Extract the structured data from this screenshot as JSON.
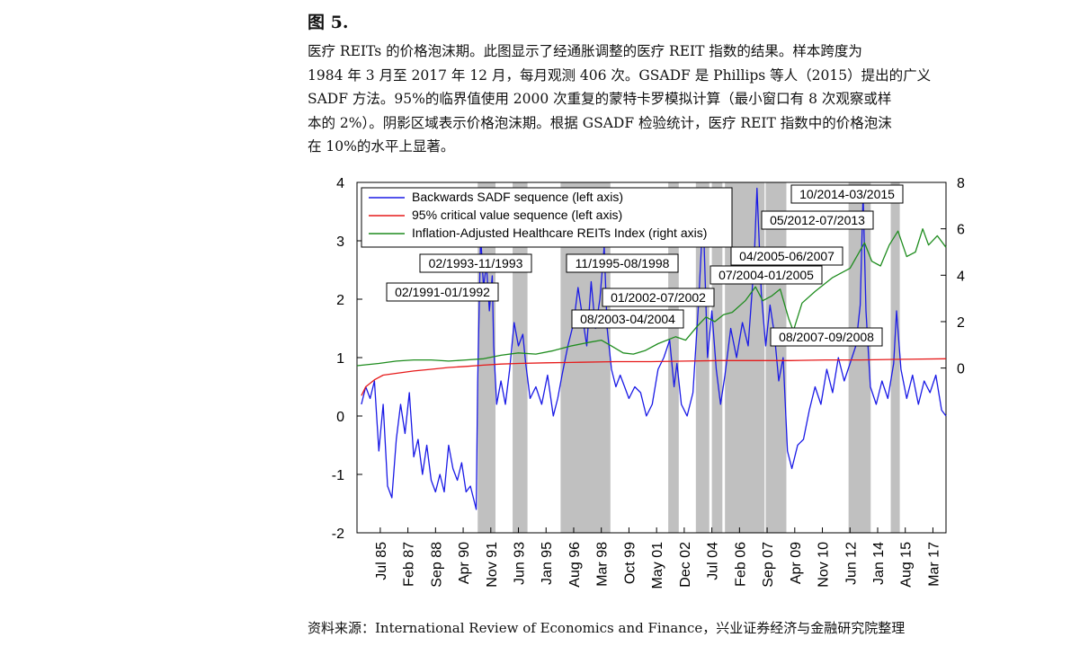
{
  "figure": {
    "title": "图 5.",
    "caption_lines": [
      "医疗 REITs 的价格泡沫期。此图显示了经通胀调整的医疗 REIT 指数的结果。样本跨度为",
      "1984 年 3 月至 2017 年 12 月，每月观测 406 次。GSADF 是 Phillips 等人（2015）提出的广义",
      "SADF 方法。95%的临界值使用 2000 次重复的蒙特卡罗模拟计算（最小窗口有 8 次观察或样",
      "本的 2%）。阴影区域表示价格泡沫期。根据 GSADF 检验统计，医疗 REIT 指数中的价格泡沫",
      "在 10%的水平上显著。"
    ],
    "source": "资料来源：International Review of Economics and Finance，兴业证券经济与金融研究院整理"
  },
  "colors": {
    "sadf": "#1a1ae6",
    "critical": "#e61a1a",
    "reit": "#1e8c1e",
    "shade": "#c0c0c0"
  },
  "chart_data": {
    "type": "line",
    "title": "",
    "xlabel": "",
    "ylabel_left": "",
    "ylabel_right": "",
    "x_range": [
      "1984-03",
      "2017-12"
    ],
    "left_axis": {
      "ylim": [
        -2,
        4
      ],
      "ticks": [
        "-2",
        "-1",
        "0",
        "1",
        "2",
        "3",
        "4"
      ]
    },
    "right_axis": {
      "ylim": [
        -7.1,
        8
      ],
      "ticks": [
        "0",
        "2",
        "4",
        "6",
        "8"
      ]
    },
    "x_tick_labels": [
      {
        "label": "Jul 85",
        "date": "1985-07"
      },
      {
        "label": "Feb 87",
        "date": "1987-02"
      },
      {
        "label": "Sep 88",
        "date": "1988-09"
      },
      {
        "label": "Apr 90",
        "date": "1990-04"
      },
      {
        "label": "Nov 91",
        "date": "1991-11"
      },
      {
        "label": "Jun 93",
        "date": "1993-06"
      },
      {
        "label": "Jan 95",
        "date": "1995-01"
      },
      {
        "label": "Aug 96",
        "date": "1996-08"
      },
      {
        "label": "Mar 98",
        "date": "1998-03"
      },
      {
        "label": "Oct 99",
        "date": "1999-10"
      },
      {
        "label": "May 01",
        "date": "2001-05"
      },
      {
        "label": "Dec 02",
        "date": "2002-12"
      },
      {
        "label": "Jul 04",
        "date": "2004-07"
      },
      {
        "label": "Feb 06",
        "date": "2006-02"
      },
      {
        "label": "Sep 07",
        "date": "2007-09"
      },
      {
        "label": "Apr 09",
        "date": "2009-04"
      },
      {
        "label": "Nov 10",
        "date": "2010-11"
      },
      {
        "label": "Jun 12",
        "date": "2012-06"
      },
      {
        "label": "Jan 14",
        "date": "2014-01"
      },
      {
        "label": "Aug 15",
        "date": "2015-08"
      },
      {
        "label": "Mar 17",
        "date": "2017-03"
      }
    ],
    "legend": {
      "placement": "top-left",
      "entries": [
        "Backwards SADF sequence (left axis)",
        "95% critical value sequence (left axis)",
        "Inflation-Adjusted Healthcare REITs Index (right axis)"
      ]
    },
    "bubble_periods": [
      {
        "label": "02/1991-01/1992",
        "start": "1991-02",
        "end": "1992-01"
      },
      {
        "label": "02/1993-11/1993",
        "start": "1993-02",
        "end": "1993-11"
      },
      {
        "label": "11/1995-08/1998",
        "start": "1995-11",
        "end": "1998-08"
      },
      {
        "label": "01/2002-07/2002",
        "start": "2002-01",
        "end": "2002-07"
      },
      {
        "label": "08/2003-04/2004",
        "start": "2003-08",
        "end": "2004-04"
      },
      {
        "label": "07/2004-01/2005",
        "start": "2004-07",
        "end": "2005-01"
      },
      {
        "label": "04/2005-06/2007",
        "start": "2005-04",
        "end": "2007-06"
      },
      {
        "label": "08/2007-09/2008",
        "start": "2007-08",
        "end": "2008-09"
      },
      {
        "label": "05/2012-07/2013",
        "start": "2012-05",
        "end": "2013-07"
      },
      {
        "label": "10/2014-03/2015",
        "start": "2014-10",
        "end": "2015-03"
      }
    ],
    "series": [
      {
        "name": "Backwards SADF sequence (left axis)",
        "axis": "left",
        "points": [
          [
            "1984-06",
            0.2
          ],
          [
            "1984-09",
            0.5
          ],
          [
            "1984-12",
            0.3
          ],
          [
            "1985-03",
            0.6
          ],
          [
            "1985-06",
            -0.6
          ],
          [
            "1985-09",
            0.2
          ],
          [
            "1985-12",
            -1.2
          ],
          [
            "1986-03",
            -1.4
          ],
          [
            "1986-06",
            -0.4
          ],
          [
            "1986-09",
            0.2
          ],
          [
            "1986-12",
            -0.3
          ],
          [
            "1987-03",
            0.4
          ],
          [
            "1987-06",
            -0.7
          ],
          [
            "1987-09",
            -0.4
          ],
          [
            "1987-12",
            -1.0
          ],
          [
            "1988-03",
            -0.5
          ],
          [
            "1988-06",
            -1.1
          ],
          [
            "1988-09",
            -1.3
          ],
          [
            "1988-12",
            -1.0
          ],
          [
            "1989-03",
            -1.3
          ],
          [
            "1989-06",
            -0.5
          ],
          [
            "1989-09",
            -0.9
          ],
          [
            "1989-12",
            -1.1
          ],
          [
            "1990-03",
            -0.8
          ],
          [
            "1990-06",
            -1.3
          ],
          [
            "1990-09",
            -1.2
          ],
          [
            "1990-12",
            -1.5
          ],
          [
            "1991-01",
            -1.6
          ],
          [
            "1991-02",
            0.6
          ],
          [
            "1991-04",
            3.1
          ],
          [
            "1991-06",
            2.2
          ],
          [
            "1991-08",
            2.6
          ],
          [
            "1991-10",
            1.8
          ],
          [
            "1991-12",
            2.4
          ],
          [
            "1992-01",
            1.2
          ],
          [
            "1992-03",
            0.2
          ],
          [
            "1992-06",
            0.6
          ],
          [
            "1992-09",
            0.2
          ],
          [
            "1992-12",
            0.8
          ],
          [
            "1993-03",
            1.6
          ],
          [
            "1993-06",
            1.2
          ],
          [
            "1993-09",
            1.4
          ],
          [
            "1993-11",
            0.9
          ],
          [
            "1994-02",
            0.3
          ],
          [
            "1994-06",
            0.5
          ],
          [
            "1994-10",
            0.2
          ],
          [
            "1995-02",
            0.7
          ],
          [
            "1995-06",
            0.0
          ],
          [
            "1995-09",
            0.3
          ],
          [
            "1995-12",
            0.7
          ],
          [
            "1996-04",
            1.2
          ],
          [
            "1996-08",
            1.6
          ],
          [
            "1996-11",
            2.2
          ],
          [
            "1997-02",
            1.7
          ],
          [
            "1997-05",
            1.2
          ],
          [
            "1997-08",
            2.3
          ],
          [
            "1997-11",
            1.5
          ],
          [
            "1998-02",
            2.0
          ],
          [
            "1998-05",
            2.9
          ],
          [
            "1998-07",
            1.5
          ],
          [
            "1998-10",
            0.8
          ],
          [
            "1999-01",
            0.5
          ],
          [
            "1999-04",
            0.7
          ],
          [
            "1999-07",
            0.5
          ],
          [
            "1999-10",
            0.3
          ],
          [
            "2000-02",
            0.5
          ],
          [
            "2000-06",
            0.4
          ],
          [
            "2000-10",
            0.0
          ],
          [
            "2001-02",
            0.2
          ],
          [
            "2001-06",
            0.8
          ],
          [
            "2001-10",
            1.0
          ],
          [
            "2002-02",
            1.3
          ],
          [
            "2002-05",
            0.5
          ],
          [
            "2002-07",
            0.9
          ],
          [
            "2002-10",
            0.2
          ],
          [
            "2003-02",
            0.0
          ],
          [
            "2003-06",
            0.4
          ],
          [
            "2003-10",
            2.0
          ],
          [
            "2004-01",
            3.5
          ],
          [
            "2004-04",
            1.0
          ],
          [
            "2004-07",
            1.8
          ],
          [
            "2004-10",
            0.8
          ],
          [
            "2005-01",
            0.2
          ],
          [
            "2005-04",
            0.7
          ],
          [
            "2005-08",
            1.5
          ],
          [
            "2005-12",
            1.0
          ],
          [
            "2006-04",
            1.6
          ],
          [
            "2006-08",
            1.2
          ],
          [
            "2006-12",
            2.6
          ],
          [
            "2007-02",
            3.9
          ],
          [
            "2007-05",
            2.1
          ],
          [
            "2007-08",
            1.2
          ],
          [
            "2007-11",
            1.9
          ],
          [
            "2008-02",
            1.4
          ],
          [
            "2008-05",
            0.6
          ],
          [
            "2008-08",
            1.0
          ],
          [
            "2008-11",
            -0.6
          ],
          [
            "2009-02",
            -0.9
          ],
          [
            "2009-06",
            -0.5
          ],
          [
            "2009-10",
            -0.4
          ],
          [
            "2010-02",
            0.1
          ],
          [
            "2010-06",
            0.5
          ],
          [
            "2010-10",
            0.2
          ],
          [
            "2011-02",
            0.8
          ],
          [
            "2011-06",
            0.4
          ],
          [
            "2011-10",
            1.0
          ],
          [
            "2012-02",
            0.6
          ],
          [
            "2012-06",
            0.9
          ],
          [
            "2012-10",
            1.2
          ],
          [
            "2013-01",
            1.9
          ],
          [
            "2013-03",
            3.8
          ],
          [
            "2013-05",
            1.8
          ],
          [
            "2013-08",
            0.5
          ],
          [
            "2013-12",
            0.2
          ],
          [
            "2014-04",
            0.6
          ],
          [
            "2014-08",
            0.3
          ],
          [
            "2014-12",
            0.9
          ],
          [
            "2015-02",
            1.8
          ],
          [
            "2015-05",
            0.8
          ],
          [
            "2015-09",
            0.3
          ],
          [
            "2016-01",
            0.7
          ],
          [
            "2016-05",
            0.2
          ],
          [
            "2016-09",
            0.6
          ],
          [
            "2017-01",
            0.4
          ],
          [
            "2017-05",
            0.7
          ],
          [
            "2017-09",
            0.1
          ],
          [
            "2017-12",
            0.0
          ]
        ]
      },
      {
        "name": "95% critical value sequence (left axis)",
        "axis": "left",
        "points": [
          [
            "1984-06",
            0.35
          ],
          [
            "1984-09",
            0.5
          ],
          [
            "1985-03",
            0.62
          ],
          [
            "1985-09",
            0.7
          ],
          [
            "1986-06",
            0.73
          ],
          [
            "1987-06",
            0.77
          ],
          [
            "1988-06",
            0.8
          ],
          [
            "1989-06",
            0.83
          ],
          [
            "1990-06",
            0.85
          ],
          [
            "1991-06",
            0.87
          ],
          [
            "1992-06",
            0.89
          ],
          [
            "1993-06",
            0.9
          ],
          [
            "1995-01",
            0.91
          ],
          [
            "1997-01",
            0.92
          ],
          [
            "1999-01",
            0.93
          ],
          [
            "2001-01",
            0.93
          ],
          [
            "2003-01",
            0.94
          ],
          [
            "2005-01",
            0.95
          ],
          [
            "2007-01",
            0.95
          ],
          [
            "2009-01",
            0.95
          ],
          [
            "2011-01",
            0.96
          ],
          [
            "2013-01",
            0.96
          ],
          [
            "2015-01",
            0.97
          ],
          [
            "2017-12",
            0.98
          ]
        ]
      },
      {
        "name": "Inflation-Adjusted Healthcare REITs Index (right axis)",
        "axis": "right",
        "points": [
          [
            "1984-03",
            0.1
          ],
          [
            "1985-06",
            0.2
          ],
          [
            "1986-06",
            0.3
          ],
          [
            "1987-06",
            0.35
          ],
          [
            "1988-06",
            0.35
          ],
          [
            "1989-06",
            0.3
          ],
          [
            "1990-06",
            0.35
          ],
          [
            "1991-06",
            0.4
          ],
          [
            "1992-06",
            0.55
          ],
          [
            "1993-06",
            0.65
          ],
          [
            "1994-06",
            0.6
          ],
          [
            "1995-06",
            0.75
          ],
          [
            "1996-06",
            0.95
          ],
          [
            "1997-06",
            1.1
          ],
          [
            "1998-03",
            1.2
          ],
          [
            "1998-10",
            0.95
          ],
          [
            "1999-06",
            0.65
          ],
          [
            "2000-01",
            0.6
          ],
          [
            "2000-09",
            0.75
          ],
          [
            "2001-06",
            1.05
          ],
          [
            "2002-06",
            1.35
          ],
          [
            "2003-01",
            1.2
          ],
          [
            "2003-09",
            1.8
          ],
          [
            "2004-03",
            2.2
          ],
          [
            "2004-09",
            2.0
          ],
          [
            "2005-03",
            2.3
          ],
          [
            "2005-09",
            2.4
          ],
          [
            "2006-06",
            2.9
          ],
          [
            "2007-01",
            3.5
          ],
          [
            "2007-06",
            2.9
          ],
          [
            "2007-12",
            3.1
          ],
          [
            "2008-06",
            3.4
          ],
          [
            "2008-12",
            2.1
          ],
          [
            "2009-03",
            1.6
          ],
          [
            "2009-09",
            2.8
          ],
          [
            "2010-06",
            3.3
          ],
          [
            "2011-06",
            3.9
          ],
          [
            "2012-06",
            4.3
          ],
          [
            "2013-04",
            5.4
          ],
          [
            "2013-09",
            4.6
          ],
          [
            "2014-03",
            4.4
          ],
          [
            "2014-09",
            5.3
          ],
          [
            "2015-03",
            5.9
          ],
          [
            "2015-09",
            4.8
          ],
          [
            "2016-03",
            5.0
          ],
          [
            "2016-08",
            6.0
          ],
          [
            "2016-12",
            5.3
          ],
          [
            "2017-06",
            5.7
          ],
          [
            "2017-12",
            5.2
          ]
        ]
      }
    ]
  }
}
